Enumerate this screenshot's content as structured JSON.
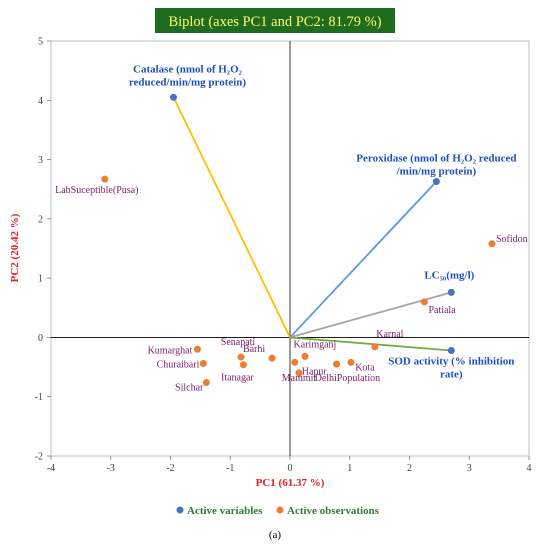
{
  "chart_data": {
    "type": "scatter",
    "title": "Biplot (axes PC1 and PC2: 81.79 %)",
    "xlabel": "PC1 (61.37 %)",
    "ylabel": "PC2 (20.42 %)",
    "xlim": [
      -4,
      4
    ],
    "ylim": [
      -2,
      5
    ],
    "x_ticks": [
      -4,
      -3,
      -2,
      -1,
      0,
      1,
      2,
      3,
      4
    ],
    "y_ticks": [
      -2,
      -1,
      0,
      1,
      2,
      3,
      4,
      5
    ],
    "grid": false,
    "legend_position": "bottom",
    "caption": "(a)",
    "colors": {
      "title_bg": "#1f6b1f",
      "title_text": "#ffff66",
      "axis_label": "#e02020",
      "variable_point": "#4472c4",
      "variable_label": "#1f4fbf",
      "observation_point": "#ed7d31",
      "observation_label": "#7a1f6b",
      "legend_text": "#2e7d32"
    },
    "variables": [
      {
        "name_lines": [
          "Catalase (nmol of H₂O₂",
          "reduced/min/mg protein)"
        ],
        "x": -1.95,
        "y": 4.05,
        "color": "#ffc000"
      },
      {
        "name_lines": [
          "Peroxidase (nmol of H₂O₂ reduced",
          "/min/mg protein)"
        ],
        "x": 2.45,
        "y": 2.63,
        "color": "#5b9bd5"
      },
      {
        "name_lines": [
          "LC₅₀(mg/l)"
        ],
        "x": 2.7,
        "y": 0.76,
        "color": "#a5a5a5"
      },
      {
        "name_lines": [
          "SOD activity (% inhibition",
          "rate)"
        ],
        "x": 2.7,
        "y": -0.22,
        "color": "#70ad47"
      }
    ],
    "observations": [
      {
        "label": "LabSuceptible(Pusa)",
        "x": -3.1,
        "y": 2.67
      },
      {
        "label": "Sofidon",
        "x": 3.38,
        "y": 1.58
      },
      {
        "label": "Patiala",
        "x": 2.25,
        "y": 0.6
      },
      {
        "label": "Karnal",
        "x": 1.42,
        "y": -0.16
      },
      {
        "label": "Kota",
        "x": 1.02,
        "y": -0.42
      },
      {
        "label": "DelhiPopulation",
        "x": 0.78,
        "y": -0.45
      },
      {
        "label": "Karimganj",
        "x": 0.25,
        "y": -0.32
      },
      {
        "label": "Hapur",
        "x": 0.08,
        "y": -0.42
      },
      {
        "label": "Mammit",
        "x": 0.15,
        "y": -0.6
      },
      {
        "label": "Barhi",
        "x": -0.3,
        "y": -0.35
      },
      {
        "label": "Senapati",
        "x": -0.82,
        "y": -0.33
      },
      {
        "label": "Itanagar",
        "x": -0.78,
        "y": -0.46
      },
      {
        "label": "Kumarghat",
        "x": -1.55,
        "y": -0.2
      },
      {
        "label": "Churaibari",
        "x": -1.45,
        "y": -0.44
      },
      {
        "label": "Silchar",
        "x": -1.4,
        "y": -0.76
      }
    ],
    "legend": [
      {
        "label": "Active variables",
        "kind": "variable"
      },
      {
        "label": "Active observations",
        "kind": "observation"
      }
    ]
  }
}
